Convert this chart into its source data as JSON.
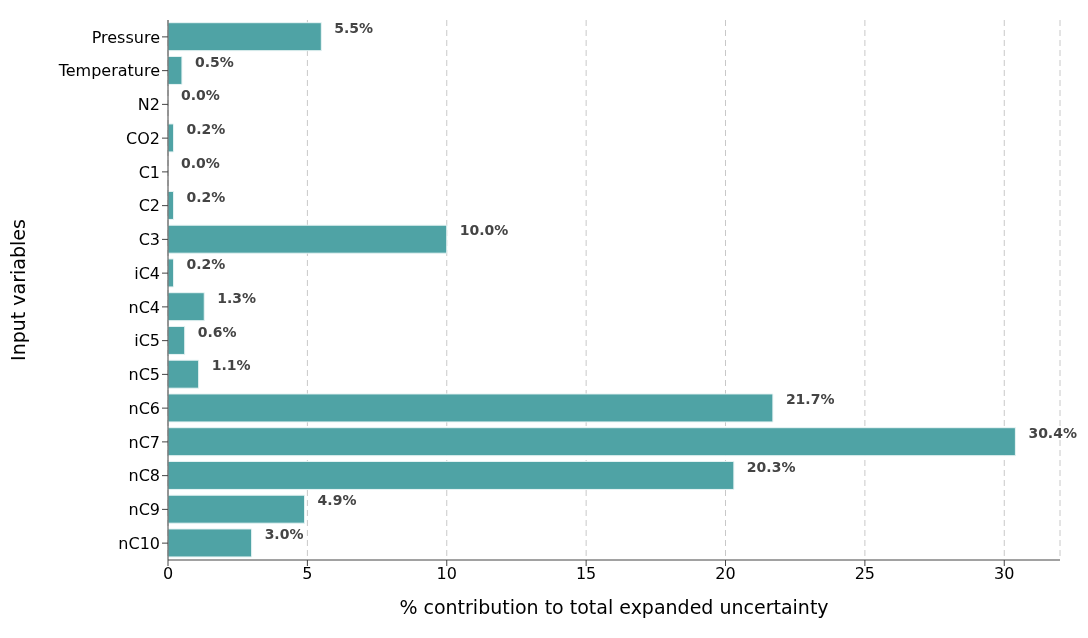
{
  "chart_data": {
    "type": "bar",
    "orientation": "horizontal",
    "xlabel": "% contribution to total expanded uncertainty",
    "ylabel": "Input variables",
    "categories": [
      "Pressure",
      "Temperature",
      "N2",
      "CO2",
      "C1",
      "C2",
      "C3",
      "iC4",
      "nC4",
      "iC5",
      "nC5",
      "nC6",
      "nC7",
      "nC8",
      "nC9",
      "nC10"
    ],
    "values": [
      5.5,
      0.5,
      0.0,
      0.2,
      0.0,
      0.2,
      10.0,
      0.2,
      1.3,
      0.6,
      1.1,
      21.7,
      30.4,
      20.3,
      4.9,
      3.0
    ],
    "value_labels": [
      "5.5%",
      "0.5%",
      "0.0%",
      "0.2%",
      "0.0%",
      "0.2%",
      "10.0%",
      "0.2%",
      "1.3%",
      "0.6%",
      "1.1%",
      "21.7%",
      "30.4%",
      "20.3%",
      "4.9%",
      "3.0%"
    ],
    "color": "#4fa3a5",
    "xlim": [
      0,
      32
    ],
    "xticks": [
      0,
      5,
      10,
      15,
      20,
      25,
      30
    ],
    "grid": "x"
  }
}
